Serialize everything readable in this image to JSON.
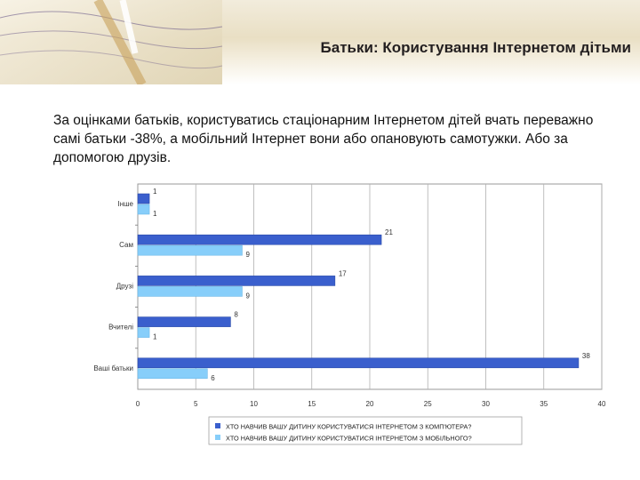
{
  "slide": {
    "title": "Батьки: Користування Інтернетом дітьми",
    "body": "За оцінками батьків, користуватись стаціонарним Інтернетом дітей вчать переважно самі батьки -38%, а мобільний Інтернет вони або опановують самотужки. Або за допомогою друзів."
  },
  "colors": {
    "series_computer": "#3a5fcd",
    "series_mobile": "#87cefa",
    "banner": "#e9dfc4"
  },
  "chart_data": {
    "type": "bar",
    "orientation": "horizontal",
    "categories": [
      "Інше",
      "Сам",
      "Друзі",
      "Вчителі",
      "Ваші батьки"
    ],
    "series": [
      {
        "name": "ХТО НАВЧИВ ВАШУ ДИТИНУ КОРИСТУВАТИСЯ ІНТЕРНЕТОМ З КОМП'ЮТЕРА?",
        "values": [
          1,
          21,
          17,
          8,
          38
        ]
      },
      {
        "name": "ХТО НАВЧИВ ВАШУ ДИТИНУ КОРИСТУВАТИСЯ ІНТЕРНЕТОМ З МОБІЛЬНОГО?",
        "values": [
          1,
          9,
          9,
          1,
          6
        ]
      }
    ],
    "xlim": [
      0,
      40
    ],
    "xticks": [
      0,
      5,
      10,
      15,
      20,
      25,
      30,
      35,
      40
    ],
    "grid": true,
    "legend_position": "bottom"
  }
}
